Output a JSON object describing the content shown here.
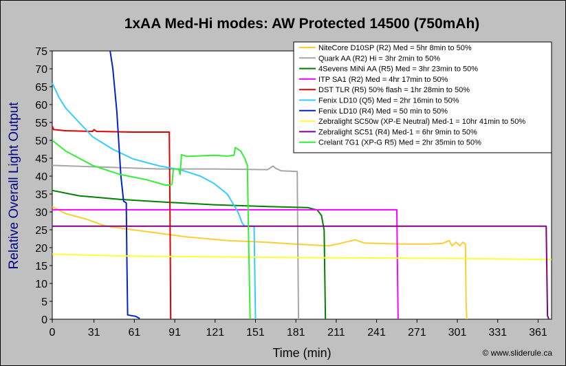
{
  "chart_data": {
    "type": "line",
    "title": "1xAA Med-Hi modes: AW Protected 14500 (750mAh)",
    "xlabel": "Time (min)",
    "ylabel": "Relative Overall Light Output",
    "xlim": [
      0,
      371
    ],
    "ylim": [
      0,
      75
    ],
    "xticks": [
      0,
      31,
      61,
      91,
      121,
      151,
      181,
      211,
      241,
      271,
      301,
      331,
      361
    ],
    "yticks": [
      0,
      5,
      10,
      15,
      20,
      25,
      30,
      35,
      40,
      45,
      50,
      55,
      60,
      65,
      70,
      75
    ],
    "grid": false,
    "legend_position": "top-right",
    "credit": "© www.sliderule.ca",
    "series": [
      {
        "name": "NiteCore D10SP (R2) Med = 5hr 8min to 50%",
        "color": "#ffcc33",
        "points": [
          [
            0,
            31.5
          ],
          [
            10,
            29.5
          ],
          [
            25,
            28
          ],
          [
            40,
            26
          ],
          [
            60,
            25
          ],
          [
            80,
            24
          ],
          [
            100,
            23
          ],
          [
            130,
            22
          ],
          [
            160,
            21.5
          ],
          [
            180,
            21
          ],
          [
            205,
            20.5
          ],
          [
            212,
            21
          ],
          [
            225,
            22.2
          ],
          [
            232,
            21.3
          ],
          [
            260,
            21
          ],
          [
            280,
            21
          ],
          [
            290,
            21.2
          ],
          [
            295,
            22
          ],
          [
            297,
            20.5
          ],
          [
            300,
            21.5
          ],
          [
            303,
            20.5
          ],
          [
            305,
            21.5
          ],
          [
            307,
            21
          ],
          [
            307.5,
            5
          ],
          [
            308,
            0
          ]
        ]
      },
      {
        "name": "Quark AA (R2) Hi = 3hr 2min to 50%",
        "color": "#a6a6a6",
        "points": [
          [
            0,
            43
          ],
          [
            40,
            42.5
          ],
          [
            80,
            42
          ],
          [
            120,
            42
          ],
          [
            160,
            41.8
          ],
          [
            164,
            42.8
          ],
          [
            166,
            42.2
          ],
          [
            170,
            41.5
          ],
          [
            182,
            41.3
          ],
          [
            182.5,
            20
          ],
          [
            183,
            0
          ]
        ]
      },
      {
        "name": "4Sevens MiNi AA (R5) Med = 3hr 23min to 50%",
        "color": "#007f00",
        "points": [
          [
            0,
            36
          ],
          [
            20,
            34.5
          ],
          [
            50,
            33.5
          ],
          [
            80,
            32.8
          ],
          [
            120,
            32
          ],
          [
            160,
            31.5
          ],
          [
            190,
            31.2
          ],
          [
            197,
            30.5
          ],
          [
            200,
            29
          ],
          [
            202,
            25
          ],
          [
            203,
            0
          ]
        ]
      },
      {
        "name": "ITP SA1 (R2) Med = 4hr 17min to 50%",
        "color": "#ff00ff",
        "points": [
          [
            0,
            30.6
          ],
          [
            100,
            30.6
          ],
          [
            200,
            30.6
          ],
          [
            256,
            30.6
          ],
          [
            256.5,
            15
          ],
          [
            257,
            0
          ]
        ]
      },
      {
        "name": "DST TLR (R5) 50% flash = 1hr 28min to 50%",
        "color": "#e00000",
        "points": [
          [
            0,
            54
          ],
          [
            1,
            53
          ],
          [
            10,
            52.7
          ],
          [
            30,
            52.5
          ],
          [
            31,
            53
          ],
          [
            33,
            52.5
          ],
          [
            60,
            52.3
          ],
          [
            87,
            52.3
          ],
          [
            87.5,
            30
          ],
          [
            88,
            0
          ]
        ]
      },
      {
        "name": "Fenix LD10 (Q5) Med = 2hr 16min to 50%",
        "color": "#33ccff",
        "points": [
          [
            0,
            66
          ],
          [
            5,
            62
          ],
          [
            10,
            59
          ],
          [
            20,
            55
          ],
          [
            30,
            51
          ],
          [
            45,
            47.5
          ],
          [
            60,
            44.8
          ],
          [
            80,
            42.8
          ],
          [
            95,
            41.8
          ],
          [
            110,
            40
          ],
          [
            120,
            38
          ],
          [
            130,
            35
          ],
          [
            138,
            30
          ],
          [
            141,
            27
          ],
          [
            143,
            26
          ],
          [
            146,
            26
          ],
          [
            150,
            26
          ],
          [
            151,
            0
          ]
        ]
      },
      {
        "name": "Fenix LD10 (R4) Med = 50 min to 50%",
        "color": "#0022cc",
        "points": [
          [
            43,
            75
          ],
          [
            45,
            70
          ],
          [
            48,
            58
          ],
          [
            51,
            40
          ],
          [
            53,
            33
          ],
          [
            55,
            32.5
          ],
          [
            55.5,
            15
          ],
          [
            56,
            1.2
          ],
          [
            62,
            0.8
          ],
          [
            65,
            0.2
          ]
        ]
      },
      {
        "name": "Zebralight SC50w (XP-E Neutral) Med-1 = 10hr 41min to 50%",
        "color": "#ffff33",
        "points": [
          [
            0,
            18.2
          ],
          [
            50,
            17.7
          ],
          [
            100,
            17.5
          ],
          [
            200,
            17.2
          ],
          [
            300,
            17
          ],
          [
            372,
            16.7
          ]
        ]
      },
      {
        "name": "Zebralight SC51 (R4) Med-1 = 6hr 9min to 50%",
        "color": "#800080",
        "points": [
          [
            0,
            26
          ],
          [
            100,
            26
          ],
          [
            200,
            26
          ],
          [
            300,
            26
          ],
          [
            367,
            26
          ],
          [
            368,
            1
          ],
          [
            369,
            0
          ]
        ]
      },
      {
        "name": "Crelant 7G1 (XP-G R5) Med = 2hr 35min to 50%",
        "color": "#33ee33",
        "points": [
          [
            0,
            50
          ],
          [
            10,
            47
          ],
          [
            30,
            43
          ],
          [
            50,
            40.5
          ],
          [
            70,
            39
          ],
          [
            84,
            37.5
          ],
          [
            88,
            37.5
          ],
          [
            89,
            37.8
          ],
          [
            90,
            42
          ],
          [
            94,
            42
          ],
          [
            95,
            40.5
          ],
          [
            96,
            46
          ],
          [
            100,
            45.5
          ],
          [
            120,
            45.8
          ],
          [
            130,
            45.6
          ],
          [
            135,
            45.8
          ],
          [
            136,
            48
          ],
          [
            140,
            47
          ],
          [
            143,
            45
          ],
          [
            145,
            43
          ],
          [
            146,
            20
          ],
          [
            147,
            0
          ]
        ]
      }
    ]
  }
}
